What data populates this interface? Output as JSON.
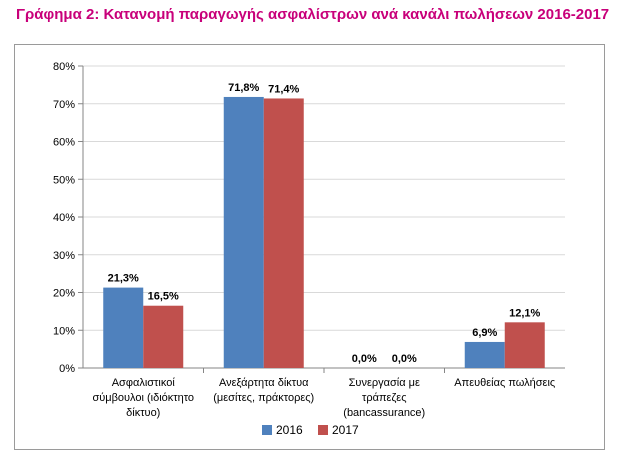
{
  "title": "Γράφημα 2: Κατανομή παραγωγής ασφαλίστρων ανά κανάλι πωλήσεων 2016-2017",
  "colors": {
    "title": "#c8007a",
    "series_2016": "#4f81bd",
    "series_2017": "#c0504d",
    "grid": "#d9d9d9",
    "axis": "#868686"
  },
  "chart_data": {
    "type": "bar",
    "title": "",
    "xlabel": "",
    "ylabel": "",
    "ylim": [
      0,
      80
    ],
    "y_ticks": [
      "0%",
      "10%",
      "20%",
      "30%",
      "40%",
      "50%",
      "60%",
      "70%",
      "80%"
    ],
    "categories": [
      [
        "Ασφαλιστικοί",
        "σύμβουλοι (ιδιόκτητο",
        "δίκτυο)"
      ],
      [
        "Ανεξάρτητα δίκτυα",
        "(μεσίτες, πράκτορες)"
      ],
      [
        "Συνεργασία με",
        "τράπεζες",
        "(bancassurance)"
      ],
      [
        "Απευθείας πωλήσεις"
      ]
    ],
    "series": [
      {
        "name": "2016",
        "values": [
          21.3,
          71.8,
          0.0,
          6.9
        ],
        "labels": [
          "21,3%",
          "71,8%",
          "0,0%",
          "6,9%"
        ]
      },
      {
        "name": "2017",
        "values": [
          16.5,
          71.4,
          0.0,
          12.1
        ],
        "labels": [
          "16,5%",
          "71,4%",
          "0,0%",
          "12,1%"
        ]
      }
    ],
    "grid": true,
    "legend_position": "bottom"
  }
}
